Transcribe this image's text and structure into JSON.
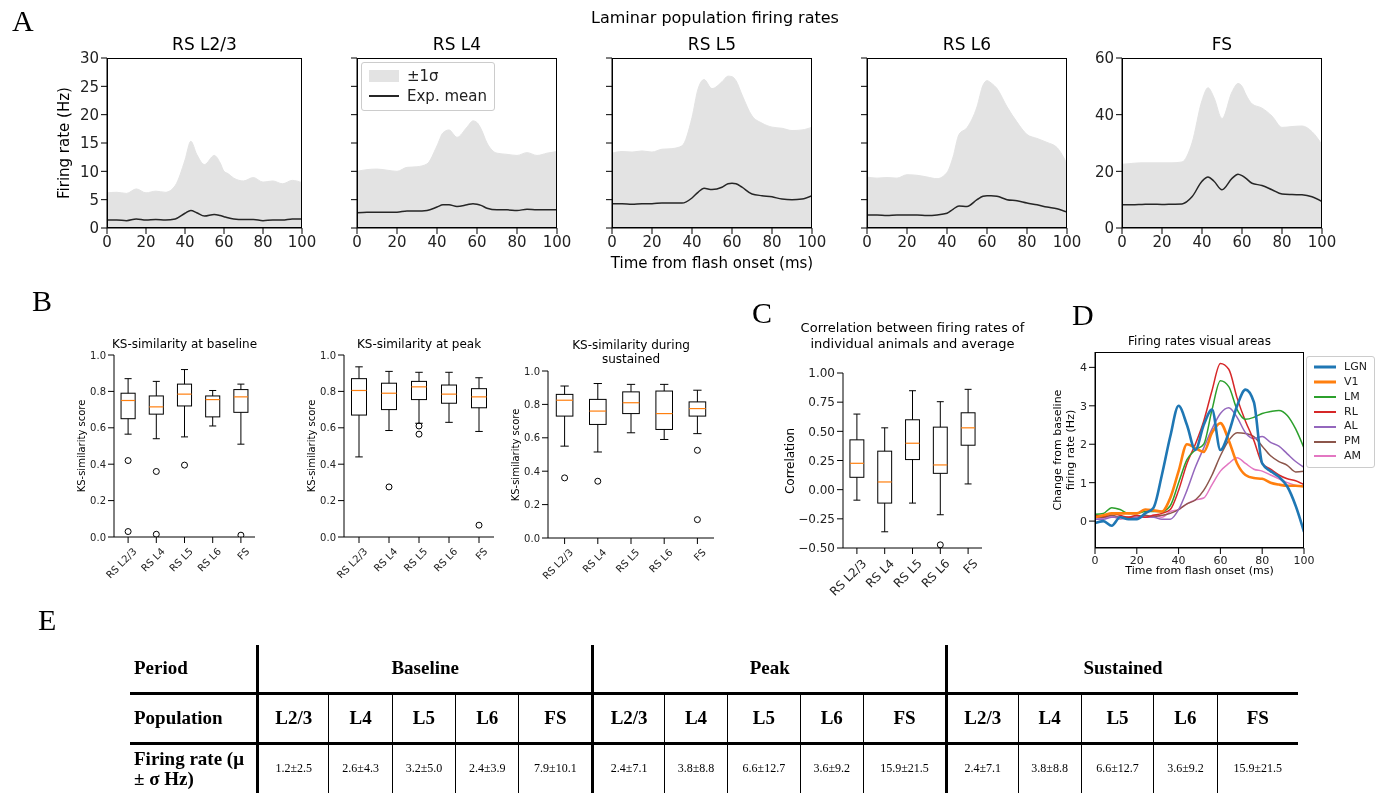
{
  "chart_data": [
    {
      "type": "line",
      "title": "RS L2/3",
      "ylabel": "Firing rate (Hz)",
      "annotations": [
        "A",
        "Laminar population firing rates"
      ],
      "x": [
        0,
        5,
        10,
        15,
        20,
        25,
        30,
        35,
        40,
        43,
        46,
        50,
        55,
        58,
        60,
        62,
        65,
        70,
        75,
        80,
        85,
        90,
        95,
        100
      ],
      "xlim": [
        0,
        100
      ],
      "xticks": [
        0,
        20,
        40,
        60,
        80,
        100
      ],
      "ylim": [
        0,
        30
      ],
      "yticks": [
        0,
        5,
        10,
        15,
        20,
        25,
        30
      ],
      "series": [
        {
          "type": "area",
          "color": "#e3e3e3",
          "values": [
            6.2,
            6.3,
            6.1,
            6.9,
            6.2,
            6.5,
            6.3,
            7.5,
            12,
            15.3,
            13,
            11.2,
            12.8,
            11.5,
            10,
            9.6,
            8.8,
            8.3,
            8.9,
            8.1,
            8.3,
            7.8,
            8.4,
            8.0
          ]
        },
        {
          "type": "line",
          "color": "#262626",
          "values": [
            1.4,
            1.4,
            1.3,
            1.6,
            1.4,
            1.5,
            1.4,
            1.6,
            2.6,
            3.1,
            2.7,
            2.1,
            2.4,
            2.2,
            2.0,
            1.8,
            1.6,
            1.5,
            1.5,
            1.3,
            1.4,
            1.4,
            1.6,
            1.6
          ]
        }
      ]
    },
    {
      "type": "line",
      "title": "RS L4",
      "legend": "top left",
      "tick_labels": "x",
      "x": [
        0,
        5,
        10,
        15,
        20,
        25,
        30,
        35,
        40,
        43,
        46,
        50,
        55,
        58,
        60,
        62,
        65,
        70,
        75,
        80,
        85,
        90,
        95,
        100
      ],
      "xlim": [
        0,
        100
      ],
      "xticks": [
        0,
        20,
        40,
        60,
        80,
        100
      ],
      "ylim": [
        0,
        30
      ],
      "yticks": [
        0,
        5,
        10,
        15,
        20,
        25,
        30
      ],
      "series": [
        {
          "type": "area",
          "name": "±1σ",
          "color": "#e3e3e3",
          "values": [
            10.0,
            10.3,
            10.4,
            10.2,
            10.0,
            10.7,
            10.8,
            11.3,
            14.5,
            16.8,
            17.3,
            16.0,
            17.8,
            18.9,
            18.6,
            17.5,
            15.0,
            13.2,
            13.0,
            12.8,
            13.3,
            12.8,
            13.2,
            13.5
          ]
        },
        {
          "type": "line",
          "name": "Exp. mean",
          "color": "#262626",
          "values": [
            2.7,
            2.8,
            2.8,
            2.8,
            2.8,
            3.0,
            3.0,
            3.1,
            3.7,
            4.1,
            4.1,
            3.8,
            4.1,
            4.3,
            4.2,
            4.0,
            3.5,
            3.2,
            3.2,
            3.1,
            3.3,
            3.2,
            3.2,
            3.2
          ]
        }
      ]
    },
    {
      "type": "line",
      "title": "RS L5",
      "xlabel": "Time from flash onset (ms)",
      "tick_labels": "x",
      "x": [
        0,
        5,
        10,
        15,
        20,
        25,
        30,
        35,
        40,
        43,
        46,
        50,
        55,
        58,
        60,
        62,
        65,
        70,
        75,
        80,
        85,
        90,
        95,
        100
      ],
      "xlim": [
        0,
        100
      ],
      "xticks": [
        0,
        20,
        40,
        60,
        80,
        100
      ],
      "ylim": [
        0,
        30
      ],
      "yticks": [
        0,
        5,
        10,
        15,
        20,
        25,
        30
      ],
      "series": [
        {
          "type": "area",
          "color": "#e3e3e3",
          "values": [
            13.2,
            13.5,
            13.4,
            13.6,
            13.4,
            13.9,
            14.0,
            14.5,
            19.5,
            24.5,
            26.2,
            24.6,
            25.8,
            26.8,
            26.7,
            26.0,
            23.5,
            19.8,
            18.5,
            17.8,
            17.6,
            17.2,
            17.3,
            17.8
          ]
        },
        {
          "type": "line",
          "color": "#262626",
          "values": [
            4.3,
            4.3,
            4.2,
            4.3,
            4.3,
            4.4,
            4.4,
            4.4,
            5.3,
            6.3,
            7.0,
            6.8,
            7.2,
            7.8,
            7.9,
            7.8,
            7.2,
            6.0,
            5.7,
            5.5,
            5.1,
            5.0,
            5.1,
            5.7
          ]
        }
      ]
    },
    {
      "type": "line",
      "title": "RS L6",
      "tick_labels": "x",
      "x": [
        0,
        5,
        10,
        15,
        20,
        25,
        30,
        35,
        40,
        43,
        46,
        50,
        55,
        58,
        60,
        62,
        65,
        70,
        75,
        80,
        85,
        90,
        95,
        100
      ],
      "xlim": [
        0,
        100
      ],
      "xticks": [
        0,
        20,
        40,
        60,
        80,
        100
      ],
      "ylim": [
        0,
        30
      ],
      "yticks": [
        0,
        5,
        10,
        15,
        20,
        25,
        30
      ],
      "series": [
        {
          "type": "area",
          "color": "#e3e3e3",
          "values": [
            9.0,
            8.8,
            8.9,
            8.8,
            9.4,
            9.3,
            9.0,
            8.7,
            9.8,
            12.5,
            16.5,
            17.7,
            21.4,
            25.2,
            26.0,
            25.6,
            24.6,
            21.4,
            18.7,
            16.5,
            15.8,
            15.1,
            14.2,
            11.3
          ]
        },
        {
          "type": "line",
          "color": "#262626",
          "values": [
            2.3,
            2.3,
            2.2,
            2.3,
            2.3,
            2.3,
            2.2,
            2.3,
            2.6,
            3.3,
            3.9,
            3.8,
            5.0,
            5.6,
            5.7,
            5.7,
            5.6,
            5.0,
            4.8,
            4.4,
            4.1,
            3.7,
            3.4,
            2.8
          ]
        }
      ]
    },
    {
      "type": "line",
      "title": "FS",
      "x": [
        0,
        5,
        10,
        15,
        20,
        25,
        30,
        35,
        40,
        43,
        46,
        50,
        55,
        58,
        60,
        62,
        65,
        70,
        75,
        80,
        85,
        90,
        95,
        100
      ],
      "xlim": [
        0,
        100
      ],
      "xticks": [
        0,
        20,
        40,
        60,
        80,
        100
      ],
      "ylim": [
        0,
        60
      ],
      "yticks": [
        0,
        20,
        40,
        60
      ],
      "series": [
        {
          "type": "area",
          "color": "#e3e3e3",
          "values": [
            22.5,
            22.8,
            23,
            23,
            23,
            23,
            23.3,
            30,
            45,
            49.5,
            46,
            38.6,
            48,
            51,
            50,
            47,
            43.8,
            42.3,
            39.5,
            35.5,
            35.8,
            36,
            34,
            29.4
          ]
        },
        {
          "type": "line",
          "color": "#262626",
          "values": [
            8.2,
            8.2,
            8.3,
            8.4,
            8.3,
            8.4,
            8.5,
            11,
            16.5,
            18,
            16.5,
            13.5,
            17.5,
            19,
            18.5,
            17.5,
            15.8,
            15,
            13.5,
            12,
            11.8,
            11.7,
            11,
            9.3
          ]
        }
      ]
    },
    {
      "type": "box",
      "title": "KS-similarity at baseline",
      "ylabel": "KS-similarity score",
      "annotations": [
        "B"
      ],
      "categories": [
        "RS L2/3",
        "RS L4",
        "RS L5",
        "RS L6",
        "FS"
      ],
      "ylim": [
        0,
        1
      ],
      "yticks": [
        {
          "value": 0,
          "label": "0.0"
        },
        0.2,
        0.4,
        0.6,
        0.8,
        {
          "value": 1,
          "label": "1.0"
        }
      ],
      "boxes": [
        {
          "low": 0.565,
          "q1": 0.65,
          "median": 0.75,
          "q3": 0.79,
          "high": 0.87,
          "outliers": [
            0.42,
            0.03
          ]
        },
        {
          "low": 0.54,
          "q1": 0.675,
          "median": 0.715,
          "q3": 0.775,
          "high": 0.855,
          "outliers": [
            0.36,
            0.015
          ]
        },
        {
          "low": 0.55,
          "q1": 0.72,
          "median": 0.785,
          "q3": 0.84,
          "high": 0.92,
          "outliers": [
            0.395
          ]
        },
        {
          "low": 0.61,
          "q1": 0.66,
          "median": 0.755,
          "q3": 0.775,
          "high": 0.805
        },
        {
          "low": 0.51,
          "q1": 0.685,
          "median": 0.77,
          "q3": 0.81,
          "high": 0.84,
          "outliers": [
            0.01
          ]
        }
      ]
    },
    {
      "type": "box",
      "title": "KS-similarity at peak",
      "ylabel": "KS-similarity score",
      "categories": [
        "RS L2/3",
        "RS L4",
        "RS L5",
        "RS L6",
        "FS"
      ],
      "ylim": [
        0,
        1
      ],
      "yticks": [
        {
          "value": 0,
          "label": "0.0"
        },
        0.2,
        0.4,
        0.6,
        0.8,
        {
          "value": 1,
          "label": "1.0"
        }
      ],
      "boxes": [
        {
          "low": 0.44,
          "q1": 0.67,
          "median": 0.805,
          "q3": 0.87,
          "high": 0.935
        },
        {
          "low": 0.585,
          "q1": 0.7,
          "median": 0.79,
          "q3": 0.845,
          "high": 0.91,
          "outliers": [
            0.275
          ]
        },
        {
          "low": 0.625,
          "q1": 0.755,
          "median": 0.825,
          "q3": 0.855,
          "high": 0.905,
          "outliers": [
            0.61,
            0.565
          ]
        },
        {
          "low": 0.63,
          "q1": 0.735,
          "median": 0.785,
          "q3": 0.835,
          "high": 0.905
        },
        {
          "low": 0.58,
          "q1": 0.71,
          "median": 0.77,
          "q3": 0.815,
          "high": 0.875,
          "outliers": [
            0.065
          ]
        }
      ]
    },
    {
      "type": "box",
      "title": "KS-similarity during sustained",
      "ylabel": "KS-similarity score",
      "categories": [
        "RS L2/3",
        "RS L4",
        "RS L5",
        "RS L6",
        "FS"
      ],
      "ylim": [
        0,
        1
      ],
      "yticks": [
        {
          "value": 0,
          "label": "0.0"
        },
        0.2,
        0.4,
        0.6,
        0.8,
        {
          "value": 1,
          "label": "1.0"
        }
      ],
      "boxes": [
        {
          "low": 0.55,
          "q1": 0.73,
          "median": 0.825,
          "q3": 0.86,
          "high": 0.91,
          "outliers": [
            0.36
          ]
        },
        {
          "low": 0.515,
          "q1": 0.68,
          "median": 0.76,
          "q3": 0.83,
          "high": 0.925,
          "outliers": [
            0.34
          ]
        },
        {
          "low": 0.63,
          "q1": 0.745,
          "median": 0.81,
          "q3": 0.875,
          "high": 0.92
        },
        {
          "low": 0.59,
          "q1": 0.65,
          "median": 0.745,
          "q3": 0.88,
          "high": 0.92
        },
        {
          "low": 0.625,
          "q1": 0.73,
          "median": 0.775,
          "q3": 0.815,
          "high": 0.885,
          "outliers": [
            0.525,
            0.11
          ]
        }
      ]
    },
    {
      "type": "box",
      "title": "Correlation between firing rates of individual animals and average",
      "ylabel": "Correlation",
      "annotations": [
        "C"
      ],
      "categories": [
        "RS L2/3",
        "RS L4",
        "RS L5",
        "RS L6",
        "FS"
      ],
      "ylim": [
        -0.5,
        1
      ],
      "yticks": [
        {
          "value": -0.5,
          "label": "−0.50"
        },
        {
          "value": -0.25,
          "label": "−0.25"
        },
        {
          "value": 0,
          "label": "0.00"
        },
        0.25,
        {
          "value": 0.5,
          "label": "0.50"
        },
        0.75,
        {
          "value": 1,
          "label": "1.00"
        }
      ],
      "boxes": [
        {
          "low": -0.09,
          "q1": 0.106,
          "median": 0.226,
          "q3": 0.427,
          "high": 0.648
        },
        {
          "low": -0.361,
          "q1": -0.115,
          "median": 0.066,
          "q3": 0.33,
          "high": 0.53
        },
        {
          "low": -0.115,
          "q1": 0.258,
          "median": 0.398,
          "q3": 0.599,
          "high": 0.848
        },
        {
          "low": -0.215,
          "q1": 0.14,
          "median": 0.212,
          "q3": 0.536,
          "high": 0.754,
          "outliers": [
            -0.473
          ]
        },
        {
          "low": 0.049,
          "q1": 0.381,
          "median": 0.53,
          "q3": 0.659,
          "high": 0.86
        }
      ]
    },
    {
      "type": "line",
      "title": "Firing rates visual areas",
      "xlabel": "Time from flash onset (ms)",
      "ylabel": "Change from baseline firing rate (Hz)",
      "annotations": [
        "D"
      ],
      "legend": "right",
      "x": [
        0,
        4,
        8,
        12,
        16,
        20,
        24,
        28,
        32,
        36,
        40,
        44,
        48,
        52,
        56,
        60,
        64,
        68,
        72,
        76,
        80,
        84,
        88,
        92,
        96,
        100
      ],
      "xlim": [
        0,
        100
      ],
      "xticks": [
        0,
        20,
        40,
        60,
        80,
        100
      ],
      "ylim": [
        -0.7,
        4.4
      ],
      "yticks": [
        0,
        1,
        2,
        3,
        4
      ],
      "series": [
        {
          "name": "LGN",
          "color": "#1f77b4",
          "values": [
            -0.05,
            0.0,
            -0.12,
            0.1,
            0.05,
            0.05,
            0.2,
            0.35,
            1.2,
            2.2,
            3.0,
            2.5,
            1.85,
            2.5,
            2.9,
            1.85,
            2.3,
            3.0,
            3.42,
            3.1,
            1.5,
            1.3,
            1.15,
            0.9,
            0.4,
            -0.28
          ]
        },
        {
          "name": "V1",
          "color": "#ff7f0e",
          "values": [
            0.1,
            0.15,
            0.2,
            0.2,
            0.2,
            0.2,
            0.3,
            0.28,
            0.25,
            0.6,
            1.3,
            2.0,
            1.9,
            1.8,
            2.3,
            2.55,
            2.1,
            1.5,
            1.2,
            1.12,
            1.1,
            1.0,
            0.95,
            0.92,
            0.92,
            0.9
          ]
        },
        {
          "name": "LM",
          "color": "#2ca02c",
          "values": [
            0.18,
            0.2,
            0.35,
            0.3,
            0.2,
            0.2,
            0.25,
            0.25,
            0.25,
            0.4,
            1.0,
            1.6,
            1.85,
            2.0,
            2.9,
            3.65,
            3.5,
            2.9,
            2.65,
            2.7,
            2.8,
            2.85,
            2.88,
            2.75,
            2.4,
            1.9
          ]
        },
        {
          "name": "RL",
          "color": "#d62728",
          "values": [
            0.15,
            0.12,
            0.2,
            0.15,
            0.1,
            0.15,
            0.1,
            0.15,
            0.2,
            0.3,
            0.8,
            1.5,
            2.0,
            2.6,
            3.4,
            4.1,
            3.95,
            3.2,
            2.6,
            2.1,
            1.5,
            1.35,
            1.2,
            1.1,
            1.05,
            0.95
          ]
        },
        {
          "name": "AL",
          "color": "#9467bd",
          "values": [
            0.05,
            0.05,
            0.1,
            0.1,
            0.05,
            0.1,
            0.1,
            0.1,
            0.05,
            0.05,
            0.3,
            0.8,
            1.4,
            1.9,
            2.4,
            2.8,
            2.95,
            2.7,
            2.3,
            2.15,
            2.2,
            2.05,
            1.95,
            1.75,
            1.55,
            1.4
          ]
        },
        {
          "name": "PM",
          "color": "#8c564b",
          "values": [
            0.1,
            0.1,
            0.15,
            0.1,
            0.1,
            0.1,
            0.15,
            0.12,
            0.15,
            0.2,
            0.3,
            0.45,
            0.55,
            0.8,
            1.2,
            1.7,
            2.1,
            2.3,
            2.28,
            2.2,
            1.95,
            1.7,
            1.55,
            1.45,
            1.28,
            1.3
          ]
        },
        {
          "name": "AM",
          "color": "#e377c2",
          "values": [
            0.05,
            0.08,
            0.12,
            0.05,
            0.1,
            0.1,
            0.1,
            0.15,
            0.1,
            0.25,
            0.3,
            0.45,
            0.55,
            0.6,
            0.95,
            1.3,
            1.5,
            1.65,
            1.5,
            1.35,
            1.3,
            1.2,
            1.1,
            1.0,
            0.93,
            0.9
          ]
        }
      ]
    },
    {
      "type": "other",
      "annotations": [
        "E",
        "Period",
        "Baseline",
        "Peak",
        "Sustained",
        "Population"
      ],
      "categories": [
        "L2/3",
        "L4",
        "L5",
        "L6",
        "FS",
        "L2/3",
        "L4",
        "L5",
        "L6",
        "FS",
        "L2/3",
        "L4",
        "L5",
        "L6",
        "FS"
      ],
      "y_categories": [
        "Firing rate (μ ± σ Hz)"
      ],
      "cell_labels": [
        [
          "1.2±2.5",
          "2.6±4.3",
          "3.2±5.0",
          "2.4±3.9",
          "7.9±10.1",
          "2.4±7.1",
          "3.8±8.8",
          "6.6±12.7",
          "3.6±9.2",
          "15.9±21.5",
          "2.4±7.1",
          "3.8±8.8",
          "6.6±12.7",
          "3.6±9.2",
          "15.9±21.5"
        ]
      ]
    }
  ]
}
